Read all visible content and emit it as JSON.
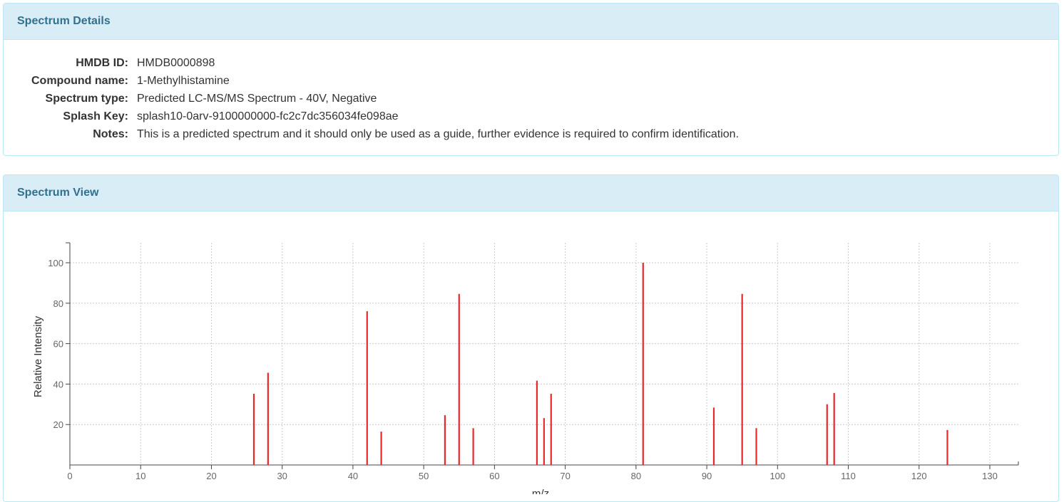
{
  "details": {
    "title": "Spectrum Details",
    "rows": [
      {
        "label": "HMDB ID:",
        "value": "HMDB0000898"
      },
      {
        "label": "Compound name:",
        "value": "1-Methylhistamine"
      },
      {
        "label": "Spectrum type:",
        "value": "Predicted LC-MS/MS Spectrum - 40V, Negative"
      },
      {
        "label": "Splash Key:",
        "value": "splash10-0arv-9100000000-fc2c7dc356034fe098ae"
      },
      {
        "label": "Notes:",
        "value": "This is a predicted spectrum and it should only be used as a guide, further evidence is required to confirm identification."
      }
    ]
  },
  "view": {
    "title": "Spectrum View"
  },
  "chart_data": {
    "type": "bar",
    "ylabel": "Relative Intensity",
    "xlabel": "m/z",
    "xlim": [
      0,
      133
    ],
    "ylim": [
      0,
      110
    ],
    "x_ticks": [
      0,
      10,
      20,
      30,
      40,
      50,
      60,
      70,
      80,
      90,
      100,
      110,
      120,
      130
    ],
    "y_ticks": [
      20,
      40,
      60,
      80,
      100
    ],
    "grid": true,
    "color": "#e8282b",
    "peaks": [
      {
        "mz": 26,
        "intensity": 35.2
      },
      {
        "mz": 28,
        "intensity": 45.6
      },
      {
        "mz": 42,
        "intensity": 76
      },
      {
        "mz": 44,
        "intensity": 16.5
      },
      {
        "mz": 53,
        "intensity": 24.6
      },
      {
        "mz": 55,
        "intensity": 84.6
      },
      {
        "mz": 57,
        "intensity": 18.2
      },
      {
        "mz": 66,
        "intensity": 41.7
      },
      {
        "mz": 67,
        "intensity": 23.2
      },
      {
        "mz": 68,
        "intensity": 35.2
      },
      {
        "mz": 81,
        "intensity": 100
      },
      {
        "mz": 91,
        "intensity": 28.4
      },
      {
        "mz": 95,
        "intensity": 84.6
      },
      {
        "mz": 97,
        "intensity": 18.2
      },
      {
        "mz": 107,
        "intensity": 30.0
      },
      {
        "mz": 108,
        "intensity": 35.6
      },
      {
        "mz": 124,
        "intensity": 17.3
      }
    ]
  }
}
